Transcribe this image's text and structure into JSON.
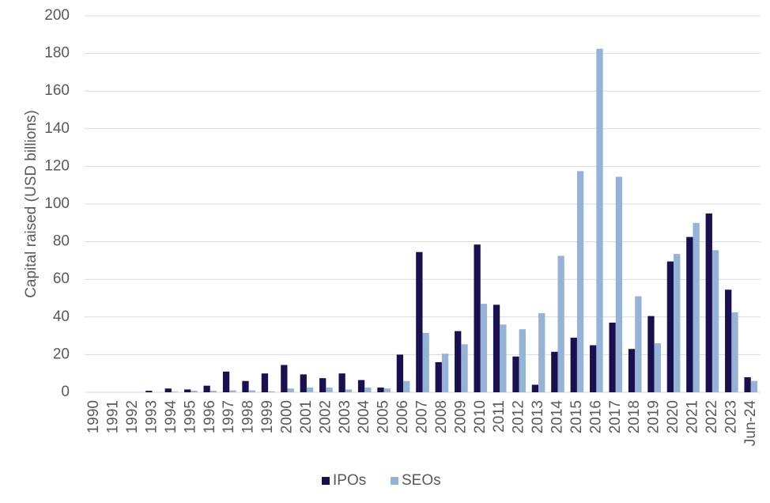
{
  "chart_data": {
    "type": "bar",
    "y_label": "Capital raised (USD billions)",
    "categories": [
      "1990",
      "1991",
      "1992",
      "1993",
      "1994",
      "1995",
      "1996",
      "1997",
      "1998",
      "1999",
      "2000",
      "2001",
      "2002",
      "2003",
      "2004",
      "2005",
      "2006",
      "2007",
      "2008",
      "2009",
      "2010",
      "2011",
      "2012",
      "2013",
      "2014",
      "2015",
      "2016",
      "2017",
      "2018",
      "2019",
      "2020",
      "2021",
      "2022",
      "2023",
      "Jun-24"
    ],
    "series": [
      {
        "name": "IPOs",
        "color": "#1a1050",
        "values": [
          0,
          0,
          0,
          0.8,
          2,
          1.5,
          3.5,
          11,
          6,
          10,
          14.5,
          9.5,
          7.5,
          10,
          6.5,
          2.5,
          20,
          74.5,
          16,
          32.5,
          78.5,
          46.5,
          19,
          4,
          21.5,
          29,
          25,
          37,
          23,
          40.5,
          69.5,
          82.5,
          95,
          54.5,
          8
        ]
      },
      {
        "name": "SEOs",
        "color": "#95b3d7",
        "values": [
          0,
          0,
          0,
          0,
          0.3,
          0.8,
          0.8,
          1,
          1,
          0.5,
          2,
          2.5,
          2.5,
          1.5,
          2.5,
          2,
          6,
          31.5,
          20.5,
          25.5,
          47,
          36,
          33.5,
          42,
          72.5,
          117.5,
          182.5,
          114.5,
          51,
          26,
          73.5,
          90,
          75.5,
          42.5,
          6
        ]
      }
    ],
    "ylim": [
      0,
      200
    ],
    "yticks": [
      0,
      20,
      40,
      60,
      80,
      100,
      120,
      140,
      160,
      180,
      200
    ],
    "grid": true,
    "legend": "bottom"
  }
}
